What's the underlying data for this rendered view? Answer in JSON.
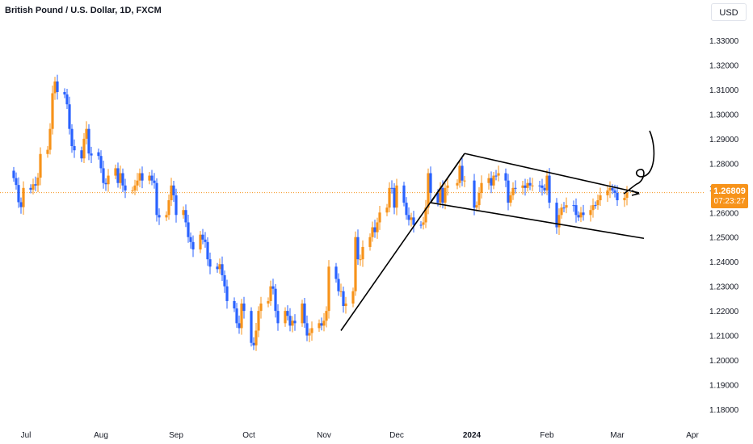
{
  "header": {
    "title": "British Pound / U.S. Dollar, 1D, FXCM",
    "currency_button": "USD"
  },
  "price_badge": {
    "price": "1.26809",
    "countdown": "07:23:27"
  },
  "colors": {
    "up": "#f7931a",
    "down": "#2962ff",
    "price_line": "#f7931a",
    "drawing": "#000000",
    "axis_text": "#131722"
  },
  "chart_data": {
    "type": "candlestick",
    "title": "British Pound / U.S. Dollar, 1D, FXCM",
    "xlabel": "",
    "ylabel": "",
    "ylim": [
      1.175,
      1.3375
    ],
    "y_ticks": [
      "1.33000",
      "1.32000",
      "1.31000",
      "1.30000",
      "1.29000",
      "1.28000",
      "1.27000",
      "1.26000",
      "1.25000",
      "1.24000",
      "1.23000",
      "1.22000",
      "1.21000",
      "1.20000",
      "1.19000",
      "1.18000"
    ],
    "x_ticks": [
      "Jul",
      "Aug",
      "Sep",
      "Oct",
      "Nov",
      "Dec",
      "2024",
      "Feb",
      "Mar",
      "Apr"
    ],
    "grid": false,
    "last_price": 1.26809,
    "candles": [
      {
        "date": "2023-06-26",
        "close": 1.274,
        "dir": "down"
      },
      {
        "date": "2023-06-27",
        "close": 1.2712,
        "dir": "down"
      },
      {
        "date": "2023-06-28",
        "close": 1.2642,
        "dir": "down"
      },
      {
        "date": "2023-06-29",
        "close": 1.2622,
        "dir": "down"
      },
      {
        "date": "2023-06-30",
        "close": 1.27,
        "dir": "up"
      },
      {
        "date": "2023-07-03",
        "close": 1.2693,
        "dir": "down"
      },
      {
        "date": "2023-07-04",
        "close": 1.2715,
        "dir": "up"
      },
      {
        "date": "2023-07-05",
        "close": 1.271,
        "dir": "down"
      },
      {
        "date": "2023-07-06",
        "close": 1.2742,
        "dir": "up"
      },
      {
        "date": "2023-07-07",
        "close": 1.2838,
        "dir": "up"
      },
      {
        "date": "2023-07-10",
        "close": 1.2855,
        "dir": "up"
      },
      {
        "date": "2023-07-11",
        "close": 1.294,
        "dir": "up"
      },
      {
        "date": "2023-07-12",
        "close": 1.3085,
        "dir": "up"
      },
      {
        "date": "2023-07-13",
        "close": 1.3133,
        "dir": "up"
      },
      {
        "date": "2023-07-14",
        "close": 1.309,
        "dir": "down"
      },
      {
        "date": "2023-07-17",
        "close": 1.308,
        "dir": "down"
      },
      {
        "date": "2023-07-18",
        "close": 1.304,
        "dir": "down"
      },
      {
        "date": "2023-07-19",
        "close": 1.294,
        "dir": "down"
      },
      {
        "date": "2023-07-20",
        "close": 1.287,
        "dir": "down"
      },
      {
        "date": "2023-07-21",
        "close": 1.2853,
        "dir": "down"
      },
      {
        "date": "2023-07-24",
        "close": 1.282,
        "dir": "down"
      },
      {
        "date": "2023-07-25",
        "close": 1.29,
        "dir": "up"
      },
      {
        "date": "2023-07-26",
        "close": 1.294,
        "dir": "up"
      },
      {
        "date": "2023-07-27",
        "close": 1.284,
        "dir": "down"
      },
      {
        "date": "2023-07-28",
        "close": 1.2845,
        "dir": "down"
      },
      {
        "date": "2023-07-31",
        "close": 1.283,
        "dir": "down"
      },
      {
        "date": "2023-08-01",
        "close": 1.278,
        "dir": "down"
      },
      {
        "date": "2023-08-02",
        "close": 1.272,
        "dir": "down"
      },
      {
        "date": "2023-08-03",
        "close": 1.2715,
        "dir": "down"
      },
      {
        "date": "2023-08-04",
        "close": 1.275,
        "dir": "up"
      },
      {
        "date": "2023-08-07",
        "close": 1.278,
        "dir": "up"
      },
      {
        "date": "2023-08-08",
        "close": 1.272,
        "dir": "down"
      },
      {
        "date": "2023-08-09",
        "close": 1.276,
        "dir": "up"
      },
      {
        "date": "2023-08-10",
        "close": 1.271,
        "dir": "down"
      },
      {
        "date": "2023-08-11",
        "close": 1.269,
        "dir": "down"
      },
      {
        "date": "2023-08-14",
        "close": 1.269,
        "dir": "up"
      },
      {
        "date": "2023-08-15",
        "close": 1.271,
        "dir": "up"
      },
      {
        "date": "2023-08-16",
        "close": 1.273,
        "dir": "up"
      },
      {
        "date": "2023-08-17",
        "close": 1.276,
        "dir": "up"
      },
      {
        "date": "2023-08-18",
        "close": 1.273,
        "dir": "down"
      },
      {
        "date": "2023-08-21",
        "close": 1.275,
        "dir": "up"
      },
      {
        "date": "2023-08-22",
        "close": 1.273,
        "dir": "down"
      },
      {
        "date": "2023-08-23",
        "close": 1.272,
        "dir": "down"
      },
      {
        "date": "2023-08-24",
        "close": 1.259,
        "dir": "down"
      },
      {
        "date": "2023-08-25",
        "close": 1.258,
        "dir": "down"
      },
      {
        "date": "2023-08-28",
        "close": 1.259,
        "dir": "up"
      },
      {
        "date": "2023-08-29",
        "close": 1.265,
        "dir": "up"
      },
      {
        "date": "2023-08-30",
        "close": 1.271,
        "dir": "up"
      },
      {
        "date": "2023-08-31",
        "close": 1.267,
        "dir": "down"
      },
      {
        "date": "2023-09-01",
        "close": 1.259,
        "dir": "down"
      },
      {
        "date": "2023-09-04",
        "close": 1.261,
        "dir": "up"
      },
      {
        "date": "2023-09-05",
        "close": 1.256,
        "dir": "down"
      },
      {
        "date": "2023-09-06",
        "close": 1.25,
        "dir": "down"
      },
      {
        "date": "2023-09-07",
        "close": 1.248,
        "dir": "down"
      },
      {
        "date": "2023-09-08",
        "close": 1.245,
        "dir": "down"
      },
      {
        "date": "2023-09-11",
        "close": 1.251,
        "dir": "up"
      },
      {
        "date": "2023-09-12",
        "close": 1.249,
        "dir": "down"
      },
      {
        "date": "2023-09-13",
        "close": 1.248,
        "dir": "down"
      },
      {
        "date": "2023-09-14",
        "close": 1.241,
        "dir": "down"
      },
      {
        "date": "2023-09-15",
        "close": 1.238,
        "dir": "down"
      },
      {
        "date": "2023-09-18",
        "close": 1.237,
        "dir": "down"
      },
      {
        "date": "2023-09-19",
        "close": 1.239,
        "dir": "up"
      },
      {
        "date": "2023-09-20",
        "close": 1.2345,
        "dir": "down"
      },
      {
        "date": "2023-09-21",
        "close": 1.23,
        "dir": "down"
      },
      {
        "date": "2023-09-22",
        "close": 1.224,
        "dir": "down"
      },
      {
        "date": "2023-09-25",
        "close": 1.221,
        "dir": "down"
      },
      {
        "date": "2023-09-26",
        "close": 1.215,
        "dir": "down"
      },
      {
        "date": "2023-09-27",
        "close": 1.213,
        "dir": "down"
      },
      {
        "date": "2023-09-28",
        "close": 1.223,
        "dir": "up"
      },
      {
        "date": "2023-09-29",
        "close": 1.22,
        "dir": "down"
      },
      {
        "date": "2023-10-02",
        "close": 1.207,
        "dir": "down"
      },
      {
        "date": "2023-10-03",
        "close": 1.206,
        "dir": "down"
      },
      {
        "date": "2023-10-04",
        "close": 1.212,
        "dir": "up"
      },
      {
        "date": "2023-10-05",
        "close": 1.22,
        "dir": "up"
      },
      {
        "date": "2023-10-06",
        "close": 1.223,
        "dir": "up"
      },
      {
        "date": "2023-10-09",
        "close": 1.224,
        "dir": "up"
      },
      {
        "date": "2023-10-10",
        "close": 1.23,
        "dir": "up"
      },
      {
        "date": "2023-10-11",
        "close": 1.229,
        "dir": "down"
      },
      {
        "date": "2023-10-12",
        "close": 1.22,
        "dir": "down"
      },
      {
        "date": "2023-10-13",
        "close": 1.215,
        "dir": "down"
      },
      {
        "date": "2023-10-16",
        "close": 1.22,
        "dir": "up"
      },
      {
        "date": "2023-10-17",
        "close": 1.218,
        "dir": "down"
      },
      {
        "date": "2023-10-18",
        "close": 1.214,
        "dir": "down"
      },
      {
        "date": "2023-10-19",
        "close": 1.216,
        "dir": "up"
      },
      {
        "date": "2023-10-20",
        "close": 1.215,
        "dir": "down"
      },
      {
        "date": "2023-10-23",
        "close": 1.223,
        "dir": "up"
      },
      {
        "date": "2023-10-24",
        "close": 1.215,
        "dir": "down"
      },
      {
        "date": "2023-10-25",
        "close": 1.21,
        "dir": "down"
      },
      {
        "date": "2023-10-26",
        "close": 1.211,
        "dir": "up"
      },
      {
        "date": "2023-10-27",
        "close": 1.213,
        "dir": "up"
      },
      {
        "date": "2023-10-30",
        "close": 1.215,
        "dir": "up"
      },
      {
        "date": "2023-10-31",
        "close": 1.214,
        "dir": "down"
      },
      {
        "date": "2023-11-01",
        "close": 1.216,
        "dir": "up"
      },
      {
        "date": "2023-11-02",
        "close": 1.22,
        "dir": "up"
      },
      {
        "date": "2023-11-03",
        "close": 1.238,
        "dir": "up"
      },
      {
        "date": "2023-11-06",
        "close": 1.233,
        "dir": "down"
      },
      {
        "date": "2023-11-07",
        "close": 1.228,
        "dir": "down"
      },
      {
        "date": "2023-11-08",
        "close": 1.228,
        "dir": "up"
      },
      {
        "date": "2023-11-09",
        "close": 1.222,
        "dir": "down"
      },
      {
        "date": "2023-11-10",
        "close": 1.223,
        "dir": "up"
      },
      {
        "date": "2023-11-13",
        "close": 1.228,
        "dir": "up"
      },
      {
        "date": "2023-11-14",
        "close": 1.25,
        "dir": "up"
      },
      {
        "date": "2023-11-15",
        "close": 1.241,
        "dir": "down"
      },
      {
        "date": "2023-11-16",
        "close": 1.241,
        "dir": "up"
      },
      {
        "date": "2023-11-17",
        "close": 1.246,
        "dir": "up"
      },
      {
        "date": "2023-11-20",
        "close": 1.25,
        "dir": "up"
      },
      {
        "date": "2023-11-21",
        "close": 1.254,
        "dir": "up"
      },
      {
        "date": "2023-11-22",
        "close": 1.252,
        "dir": "down"
      },
      {
        "date": "2023-11-23",
        "close": 1.256,
        "dir": "up"
      },
      {
        "date": "2023-11-24",
        "close": 1.26,
        "dir": "up"
      },
      {
        "date": "2023-11-27",
        "close": 1.262,
        "dir": "up"
      },
      {
        "date": "2023-11-28",
        "close": 1.27,
        "dir": "up"
      },
      {
        "date": "2023-11-29",
        "close": 1.27,
        "dir": "down"
      },
      {
        "date": "2023-11-30",
        "close": 1.262,
        "dir": "down"
      },
      {
        "date": "2023-12-01",
        "close": 1.271,
        "dir": "up"
      },
      {
        "date": "2023-12-04",
        "close": 1.264,
        "dir": "down"
      },
      {
        "date": "2023-12-05",
        "close": 1.259,
        "dir": "down"
      },
      {
        "date": "2023-12-06",
        "close": 1.257,
        "dir": "down"
      },
      {
        "date": "2023-12-07",
        "close": 1.258,
        "dir": "up"
      },
      {
        "date": "2023-12-08",
        "close": 1.255,
        "dir": "down"
      },
      {
        "date": "2023-12-11",
        "close": 1.255,
        "dir": "down"
      },
      {
        "date": "2023-12-12",
        "close": 1.256,
        "dir": "up"
      },
      {
        "date": "2023-12-13",
        "close": 1.262,
        "dir": "up"
      },
      {
        "date": "2023-12-14",
        "close": 1.276,
        "dir": "up"
      },
      {
        "date": "2023-12-15",
        "close": 1.268,
        "dir": "down"
      },
      {
        "date": "2023-12-18",
        "close": 1.264,
        "dir": "down"
      },
      {
        "date": "2023-12-19",
        "close": 1.27,
        "dir": "up"
      },
      {
        "date": "2023-12-20",
        "close": 1.264,
        "dir": "down"
      },
      {
        "date": "2023-12-21",
        "close": 1.27,
        "dir": "up"
      },
      {
        "date": "2023-12-22",
        "close": 1.271,
        "dir": "up"
      },
      {
        "date": "2023-12-26",
        "close": 1.272,
        "dir": "up"
      },
      {
        "date": "2023-12-27",
        "close": 1.279,
        "dir": "up"
      },
      {
        "date": "2023-12-28",
        "close": 1.273,
        "dir": "down"
      },
      {
        "date": "2023-12-29",
        "close": 1.273,
        "dir": "up"
      },
      {
        "date": "2024-01-02",
        "close": 1.262,
        "dir": "down"
      },
      {
        "date": "2024-01-03",
        "close": 1.263,
        "dir": "up"
      },
      {
        "date": "2024-01-04",
        "close": 1.268,
        "dir": "up"
      },
      {
        "date": "2024-01-05",
        "close": 1.272,
        "dir": "up"
      },
      {
        "date": "2024-01-08",
        "close": 1.274,
        "dir": "up"
      },
      {
        "date": "2024-01-09",
        "close": 1.271,
        "dir": "down"
      },
      {
        "date": "2024-01-10",
        "close": 1.275,
        "dir": "up"
      },
      {
        "date": "2024-01-11",
        "close": 1.275,
        "dir": "down"
      },
      {
        "date": "2024-01-12",
        "close": 1.276,
        "dir": "up"
      },
      {
        "date": "2024-01-15",
        "close": 1.273,
        "dir": "down"
      },
      {
        "date": "2024-01-16",
        "close": 1.264,
        "dir": "down"
      },
      {
        "date": "2024-01-17",
        "close": 1.267,
        "dir": "up"
      },
      {
        "date": "2024-01-18",
        "close": 1.27,
        "dir": "up"
      },
      {
        "date": "2024-01-19",
        "close": 1.27,
        "dir": "down"
      },
      {
        "date": "2024-01-22",
        "close": 1.271,
        "dir": "up"
      },
      {
        "date": "2024-01-23",
        "close": 1.27,
        "dir": "down"
      },
      {
        "date": "2024-01-24",
        "close": 1.272,
        "dir": "up"
      },
      {
        "date": "2024-01-25",
        "close": 1.271,
        "dir": "down"
      },
      {
        "date": "2024-01-26",
        "close": 1.271,
        "dir": "up"
      },
      {
        "date": "2024-01-29",
        "close": 1.271,
        "dir": "down"
      },
      {
        "date": "2024-01-30",
        "close": 1.27,
        "dir": "down"
      },
      {
        "date": "2024-01-31",
        "close": 1.269,
        "dir": "down"
      },
      {
        "date": "2024-02-01",
        "close": 1.275,
        "dir": "up"
      },
      {
        "date": "2024-02-02",
        "close": 1.264,
        "dir": "down"
      },
      {
        "date": "2024-02-05",
        "close": 1.254,
        "dir": "down"
      },
      {
        "date": "2024-02-06",
        "close": 1.259,
        "dir": "up"
      },
      {
        "date": "2024-02-07",
        "close": 1.262,
        "dir": "up"
      },
      {
        "date": "2024-02-08",
        "close": 1.262,
        "dir": "down"
      },
      {
        "date": "2024-02-09",
        "close": 1.263,
        "dir": "up"
      },
      {
        "date": "2024-02-12",
        "close": 1.263,
        "dir": "down"
      },
      {
        "date": "2024-02-13",
        "close": 1.259,
        "dir": "down"
      },
      {
        "date": "2024-02-14",
        "close": 1.258,
        "dir": "down"
      },
      {
        "date": "2024-02-15",
        "close": 1.26,
        "dir": "up"
      },
      {
        "date": "2024-02-16",
        "close": 1.259,
        "dir": "down"
      },
      {
        "date": "2024-02-19",
        "close": 1.261,
        "dir": "up"
      },
      {
        "date": "2024-02-20",
        "close": 1.263,
        "dir": "up"
      },
      {
        "date": "2024-02-21",
        "close": 1.263,
        "dir": "down"
      },
      {
        "date": "2024-02-22",
        "close": 1.265,
        "dir": "up"
      },
      {
        "date": "2024-02-23",
        "close": 1.267,
        "dir": "up"
      },
      {
        "date": "2024-02-26",
        "close": 1.269,
        "dir": "up"
      },
      {
        "date": "2024-02-27",
        "close": 1.27,
        "dir": "up"
      },
      {
        "date": "2024-02-28",
        "close": 1.269,
        "dir": "down"
      },
      {
        "date": "2024-02-29",
        "close": 1.268,
        "dir": "down"
      },
      {
        "date": "2024-03-01",
        "close": 1.265,
        "dir": "down"
      },
      {
        "date": "2024-03-04",
        "close": 1.266,
        "dir": "up"
      },
      {
        "date": "2024-03-05",
        "close": 1.2681,
        "dir": "up"
      }
    ]
  }
}
